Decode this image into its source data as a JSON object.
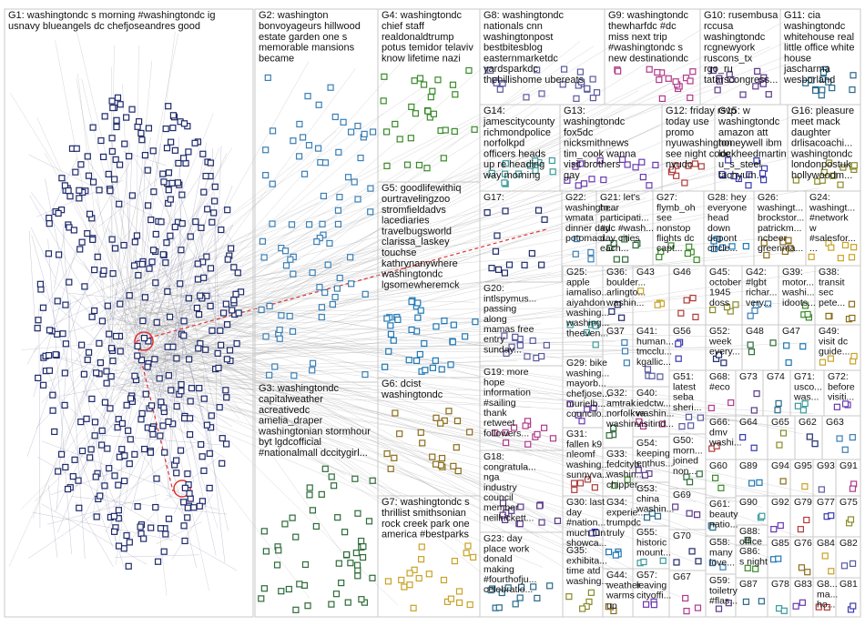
{
  "groups": [
    {
      "lines": [
        "G1: washingtondc s morning #washingtondc ig",
        "usnavy blueangels dc chefjoseandres good"
      ]
    },
    {
      "lines": [
        "G2: washington",
        "bonvoyageurs hillwood",
        "estate garden one s",
        "memorable mansions",
        "became"
      ]
    },
    {
      "lines": [
        "G3: washingtondc",
        "capitalweather",
        "acreativedc",
        "amelia_draper",
        "washingtonian stormhour",
        "byt lgdcofficial",
        "#nationalmall dccitygirl..."
      ]
    },
    {
      "lines": [
        "G4: washingtondc",
        "chief staff",
        "realdonaldtrump",
        "potus temidor telaviv",
        "know lifetime nazi"
      ]
    },
    {
      "lines": [
        "G5: goodlifewithiq",
        "ourtravelingzoo",
        "stromfieldadvs",
        "lacediaries",
        "travelbugsworld",
        "clarissa_laskey",
        "touchse",
        "kathrynanywhere",
        "washingtondc",
        "lgsomewheremck"
      ]
    },
    {
      "lines": [
        "G6: dcist",
        "washingtondc"
      ]
    },
    {
      "lines": [
        "G7: washingtondc s",
        "thrillist smithsonian",
        "rock creek park one",
        "america #bestparks"
      ]
    },
    {
      "lines": [
        "G8: washingtondc",
        "nationals cnn",
        "washingtonpost",
        "bestbitesblog",
        "easternmarketdc",
        "yardsparkdc",
        "thehillishome ubereats"
      ]
    },
    {
      "lines": [
        "G9: washingtondc",
        "thewharfdc #dc",
        "miss next trip",
        "#washingtondc s",
        "new destinationdc"
      ]
    },
    {
      "lines": [
        "G10: rusembusa",
        "rccusa",
        "washingtondc",
        "rcgnewyork",
        "ruscons_tx",
        "rgo_ru",
        "tatarscongress..."
      ]
    },
    {
      "lines": [
        "G11: cia",
        "washingtondc",
        "whitehouse real",
        "little office white",
        "house",
        "jascharma",
        "wesborland"
      ]
    },
    {
      "lines": [
        "G14:",
        "jamescitycounty",
        "richmondpolice",
        "norfolkpd",
        "officers heads",
        "up re heading",
        "way morning"
      ]
    },
    {
      "lines": [
        "G13:",
        "washingtondc",
        "fox5dc",
        "nicksmithnews",
        "tim_cook wanna",
        "visit brothers",
        "gay"
      ]
    },
    {
      "lines": [
        "G12: friday rsvp",
        "today use",
        "promo",
        "nyuwashington...",
        "see night code",
        "nyudc"
      ]
    },
    {
      "lines": [
        "G15: w",
        "washingtondc",
        "amazon att",
        "honeywell ibm",
        "lockheedmartin",
        "u_s_steel",
        "tachyum..."
      ]
    },
    {
      "lines": [
        "G16: pleasure",
        "meet mack",
        "daughter",
        "drlisacoachi...",
        "washingtondc",
        "londonpostuk",
        "hollywoodm..."
      ]
    },
    {
      "lines": [
        "G17:"
      ]
    },
    {
      "lines": [
        "G22:",
        "washingto...",
        "wmata",
        "dinner day",
        "potomaci..."
      ]
    },
    {
      "lines": [
        "G21: let's",
        "hear",
        "participati...",
        "#dc #wash...",
        "day cities",
        "each..."
      ]
    },
    {
      "lines": [
        "G27:",
        "flymb_oh",
        "see",
        "nonstop",
        "flights dc",
        "capt..."
      ]
    },
    {
      "lines": [
        "G28: hey",
        "everyone",
        "head",
        "down",
        "dupont",
        "circle..."
      ]
    },
    {
      "lines": [
        "G26:",
        "washingt...",
        "brockstor...",
        "patrickm...",
        "ncbeer",
        "greenma..."
      ]
    },
    {
      "lines": [
        "G24:",
        "washingt...",
        "#network",
        "w",
        "#salesfor...",
        "..."
      ]
    },
    {
      "lines": [
        "G20:",
        "intlspymus...",
        "passing",
        "along",
        "mamas free",
        "entry",
        "sunday..."
      ]
    },
    {
      "lines": [
        "G19: more",
        "hope",
        "information",
        "#sailing",
        "thank",
        "retweet",
        "followers..."
      ]
    },
    {
      "lines": [
        "G18:",
        "congratula...",
        "nga",
        "industry",
        "council",
        "member",
        "neillrickett..."
      ]
    },
    {
      "lines": [
        "G23: day",
        "place work",
        "donald",
        "making",
        "#fourthofju...",
        "celebratio..."
      ]
    },
    {
      "lines": [
        "G25:",
        "apple",
        "iamaliso...",
        "aiyahdon",
        "washing...",
        "washing...",
        "theeven..."
      ]
    },
    {
      "lines": [
        "G29: bike",
        "washing...",
        "mayorb...",
        "chefjose...",
        "murielb...",
        "councilo..."
      ]
    },
    {
      "lines": [
        "G31:",
        "fallen k9",
        "nleomf",
        "washing...",
        "sunnyva..."
      ]
    },
    {
      "lines": [
        "G30: last",
        "day",
        "#nation...",
        "much fun",
        "showca..."
      ]
    },
    {
      "lines": [
        "G35:",
        "exhibita...",
        "time atd",
        "washing..."
      ]
    },
    {
      "lines": [
        "G36:",
        "boulder...",
        "arlingto...",
        "washin..."
      ]
    },
    {
      "lines": [
        "G37"
      ]
    },
    {
      "lines": [
        "G32:",
        "amtrak",
        "norfolkva",
        "washin..."
      ]
    },
    {
      "lines": [
        "G33:",
        "fedcityb...",
        "washin...",
        "chipper..."
      ]
    },
    {
      "lines": [
        "G34:",
        "experie...",
        "trumpdc",
        "truly"
      ]
    },
    {
      "lines": [
        "G44:",
        "weather",
        "warms",
        "up"
      ]
    },
    {
      "lines": [
        "G43"
      ]
    },
    {
      "lines": [
        "G41:",
        "human...",
        "tmcclu...",
        "kgallic..."
      ]
    },
    {
      "lines": [
        "G40:",
        "iedctw...",
        "washin...",
        "visitind..."
      ]
    },
    {
      "lines": [
        "G54:",
        "keeping",
        "enthus..."
      ]
    },
    {
      "lines": [
        "G53:",
        "china",
        "washin..."
      ]
    },
    {
      "lines": [
        "G55:",
        "historic",
        "mount..."
      ]
    },
    {
      "lines": [
        "G57:",
        "leaving",
        "cityoffi..."
      ]
    },
    {
      "lines": [
        "G46"
      ]
    },
    {
      "lines": [
        "G56"
      ]
    },
    {
      "lines": [
        "G45:",
        "october",
        "1945",
        "doss"
      ]
    },
    {
      "lines": [
        "G52:",
        "week",
        "every..."
      ]
    },
    {
      "lines": [
        "G42:",
        "#lgbt",
        "richar...",
        "very..."
      ]
    },
    {
      "lines": [
        "G48"
      ]
    },
    {
      "lines": [
        "G39:",
        "motor...",
        "washi...",
        "idoots..."
      ]
    },
    {
      "lines": [
        "G47"
      ]
    },
    {
      "lines": [
        "G38:",
        "transit",
        "sec",
        "pete..."
      ]
    },
    {
      "lines": [
        "G49:",
        "visit dc",
        "guide..."
      ]
    },
    {
      "lines": [
        "G51:",
        "latest",
        "seba",
        "sheri..."
      ]
    },
    {
      "lines": [
        "G68:",
        "#eco"
      ]
    },
    {
      "lines": [
        "G73"
      ]
    },
    {
      "lines": [
        "G74"
      ]
    },
    {
      "lines": [
        "G71:",
        "usco...",
        "was..."
      ]
    },
    {
      "lines": [
        "G72:",
        "before",
        "visiti..."
      ]
    },
    {
      "lines": [
        "G66:",
        "dmv",
        "washi..."
      ]
    },
    {
      "lines": [
        "G64"
      ]
    },
    {
      "lines": [
        "G65"
      ]
    },
    {
      "lines": [
        "G62"
      ]
    },
    {
      "lines": [
        "G63"
      ]
    },
    {
      "lines": [
        "G50:",
        "morn...",
        "joined",
        "non..."
      ]
    },
    {
      "lines": [
        "G60"
      ]
    },
    {
      "lines": [
        "G89"
      ]
    },
    {
      "lines": [
        "G94"
      ]
    },
    {
      "lines": [
        "G95"
      ]
    },
    {
      "lines": [
        "G93"
      ]
    },
    {
      "lines": [
        "G91"
      ]
    },
    {
      "lines": [
        "G69"
      ]
    },
    {
      "lines": [
        "G61:",
        "beauty",
        "natio..."
      ]
    },
    {
      "lines": [
        "G90"
      ]
    },
    {
      "lines": [
        "G92"
      ]
    },
    {
      "lines": [
        "G79"
      ]
    },
    {
      "lines": [
        "G77"
      ]
    },
    {
      "lines": [
        "G75"
      ]
    },
    {
      "lines": [
        "G70"
      ]
    },
    {
      "lines": [
        "G58:",
        "many",
        "love..."
      ]
    },
    {
      "lines": [
        "G88:",
        "office"
      ]
    },
    {
      "lines": [
        "G86:",
        "s night"
      ]
    },
    {
      "lines": [
        "G85"
      ]
    },
    {
      "lines": [
        "G76"
      ]
    },
    {
      "lines": [
        "G84"
      ]
    },
    {
      "lines": [
        "G82"
      ]
    },
    {
      "lines": [
        "G67"
      ]
    },
    {
      "lines": [
        "G59:",
        "toiletry",
        "#flas..."
      ]
    },
    {
      "lines": [
        "G87"
      ]
    },
    {
      "lines": [
        "G78"
      ]
    },
    {
      "lines": [
        "G83"
      ]
    },
    {
      "lines": [
        "G8...",
        "ma...",
        "ho..."
      ]
    },
    {
      "lines": [
        "G81"
      ]
    }
  ]
}
